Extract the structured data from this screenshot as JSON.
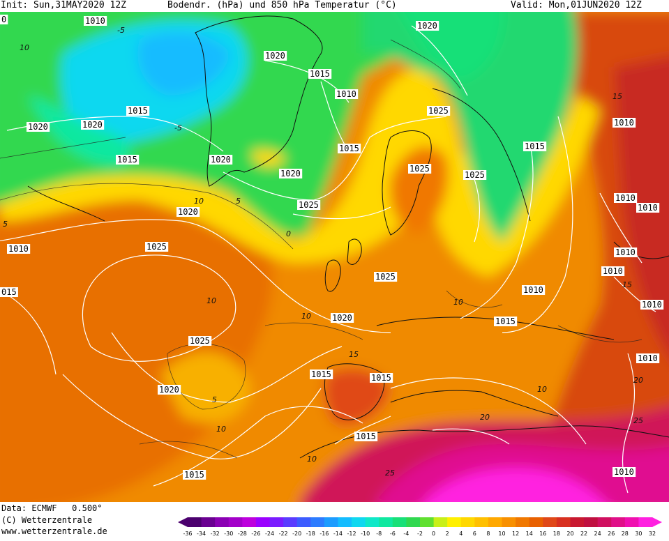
{
  "header": {
    "init": "Init: Sun,31MAY2020 12Z",
    "title": "Bodendr. (hPa) und 850 hPa Temperatur (°C)",
    "valid": "Valid: Mon,01JUN2020 12Z"
  },
  "footer": {
    "data_line": "Data: ECMWF   0.500°",
    "copyright": "(C) Wetterzentrale",
    "url": "www.wetterzentrale.de"
  },
  "colorbar": {
    "ticks": [
      "-36",
      "-34",
      "-32",
      "-30",
      "-28",
      "-26",
      "-24",
      "-22",
      "-20",
      "-18",
      "-16",
      "-14",
      "-12",
      "-10",
      "-8",
      "-6",
      "-4",
      "-2",
      "0",
      "2",
      "4",
      "6",
      "8",
      "10",
      "12",
      "14",
      "16",
      "18",
      "20",
      "22",
      "24",
      "26",
      "28",
      "30",
      "32"
    ],
    "colors": [
      "#4b006e",
      "#6a0091",
      "#8a00b3",
      "#a300c9",
      "#bd00dd",
      "#9b00ff",
      "#7a1cff",
      "#5a3cff",
      "#3c5cff",
      "#2c7cff",
      "#1c9cff",
      "#14bcff",
      "#10d8f0",
      "#10e8c8",
      "#10e8a0",
      "#18e078",
      "#30d850",
      "#60e030",
      "#c8f018",
      "#fff000",
      "#ffd800",
      "#ffc000",
      "#ffa800",
      "#f89000",
      "#f07800",
      "#e86000",
      "#e04818",
      "#d83020",
      "#c81830",
      "#c01040",
      "#d01060",
      "#e01088",
      "#f010b0",
      "#ff20e0"
    ]
  },
  "isobar_labels": [
    {
      "name": "isobar-1020-a",
      "text": "1020"
    },
    {
      "name": "isobar-1020-b",
      "text": "1020"
    },
    {
      "name": "isobar-1015-a",
      "text": "1015"
    },
    {
      "name": "isobar-1010-a",
      "text": "1010"
    },
    {
      "name": "isobar-1015-b",
      "text": "1015"
    },
    {
      "name": "isobar-1020-c",
      "text": "1020"
    },
    {
      "name": "isobar-1015-c",
      "text": "1015"
    },
    {
      "name": "isobar-1020-d",
      "text": "1020"
    },
    {
      "name": "isobar-1025-a",
      "text": "1025"
    },
    {
      "name": "isobar-1010-b",
      "text": "1010"
    },
    {
      "name": "isobar-1015-d",
      "text": "1015"
    },
    {
      "name": "isobar-1020-e",
      "text": "1020"
    },
    {
      "name": "isobar-1025-b",
      "text": "1025"
    },
    {
      "name": "isobar-1025-c",
      "text": "1025"
    },
    {
      "name": "isobar-1025-d",
      "text": "1025"
    },
    {
      "name": "isobar-1020-f",
      "text": "1020"
    },
    {
      "name": "isobar-1010-c",
      "text": "1010"
    },
    {
      "name": "isobar-1025-e",
      "text": "1025"
    },
    {
      "name": "isobar-1010-d",
      "text": "1010"
    },
    {
      "name": "isobar-1010-e",
      "text": "1010"
    },
    {
      "name": "isobar-1010-f",
      "text": "1010"
    },
    {
      "name": "isobar-1010-g",
      "text": "1010"
    },
    {
      "name": "isobar-1010-h",
      "text": "1010"
    },
    {
      "name": "isobar-1010-i",
      "text": "1010"
    },
    {
      "name": "isobar-1025-f",
      "text": "1025"
    },
    {
      "name": "isobar-1020-g",
      "text": "1020"
    },
    {
      "name": "isobar-1015-e",
      "text": "1015"
    },
    {
      "name": "isobar-1015-f",
      "text": "1015"
    },
    {
      "name": "isobar-1010-j",
      "text": "1010"
    },
    {
      "name": "isobar-1015-g",
      "text": "1015"
    },
    {
      "name": "isobar-1025-g",
      "text": "1025"
    },
    {
      "name": "isobar-1020-h",
      "text": "1020"
    },
    {
      "name": "isobar-1010-k",
      "text": "1010"
    },
    {
      "name": "isobar-1015-h",
      "text": "1015"
    },
    {
      "name": "isobar-1015-i",
      "text": "1015"
    },
    {
      "name": "isobar-1020-i",
      "text": "1020"
    },
    {
      "name": "isobar-1015-j",
      "text": "1015"
    },
    {
      "name": "isobar-1010-l",
      "text": "1010"
    },
    {
      "name": "isobar-015-edge",
      "text": "015"
    },
    {
      "name": "isobar-0-edge",
      "text": "0"
    }
  ],
  "temperature_labels": [
    {
      "name": "temp-label-10-a",
      "text": "10"
    },
    {
      "name": "temp-label-5-a",
      "text": "-5"
    },
    {
      "name": "temp-label-5-b",
      "text": "-5"
    },
    {
      "name": "temp-label-10-b",
      "text": "10"
    },
    {
      "name": "temp-label-5-c",
      "text": "5"
    },
    {
      "name": "temp-label-0-a",
      "text": "0"
    },
    {
      "name": "temp-label-10-c",
      "text": "10"
    },
    {
      "name": "temp-label-10-d",
      "text": "10"
    },
    {
      "name": "temp-label-5-d",
      "text": "5"
    },
    {
      "name": "temp-label-10-e",
      "text": "10"
    },
    {
      "name": "temp-label-15-a",
      "text": "15"
    },
    {
      "name": "temp-label-15-b",
      "text": "15"
    },
    {
      "name": "temp-label-15-c",
      "text": "15"
    },
    {
      "name": "temp-label-20-a",
      "text": "20"
    },
    {
      "name": "temp-label-25-a",
      "text": "25"
    },
    {
      "name": "temp-label-25-b",
      "text": "25"
    },
    {
      "name": "temp-label-20-b",
      "text": "20"
    },
    {
      "name": "temp-label-10-f",
      "text": "10"
    },
    {
      "name": "temp-label-5-e",
      "text": "5"
    },
    {
      "name": "temp-label-10-g",
      "text": "10"
    },
    {
      "name": "temp-label-10-h",
      "text": "10"
    }
  ]
}
